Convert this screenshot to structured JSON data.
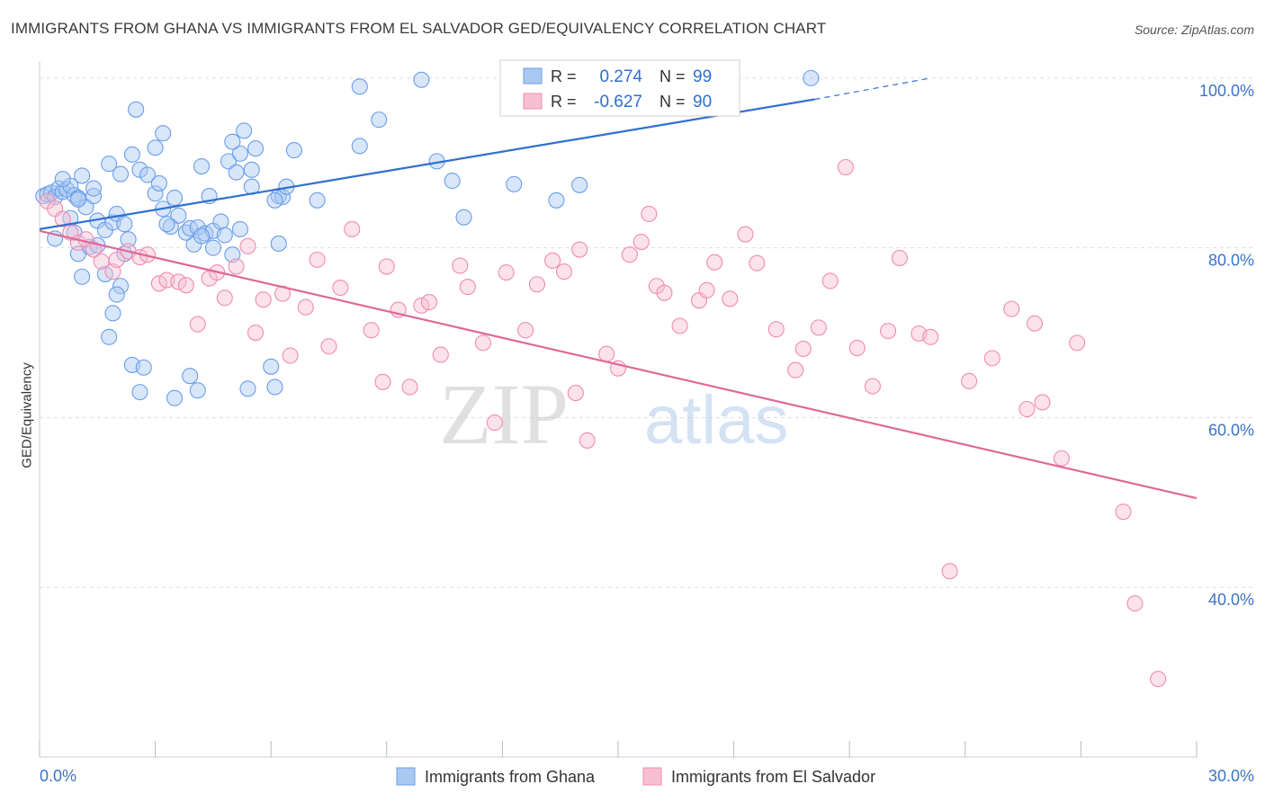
{
  "title": "IMMIGRANTS FROM GHANA VS IMMIGRANTS FROM EL SALVADOR GED/EQUIVALENCY CORRELATION CHART",
  "source": "Source: ZipAtlas.com",
  "watermark": {
    "zip": "ZIP",
    "atlas": "atlas"
  },
  "chart_data": {
    "type": "scatter",
    "ylabel": "GED/Equivalency",
    "xlim": [
      0,
      30
    ],
    "ylim": [
      20,
      102
    ],
    "x_ticks": [
      0,
      3,
      6,
      9,
      12,
      15,
      18,
      21,
      24,
      27,
      30
    ],
    "x_tick_labels": {
      "left": "0.0%",
      "right": "30.0%"
    },
    "y_ticks": [
      {
        "value": 100,
        "label": "100.0%"
      },
      {
        "value": 80,
        "label": "80.0%"
      },
      {
        "value": 60,
        "label": "60.0%"
      },
      {
        "value": 40,
        "label": "40.0%"
      }
    ],
    "grid": true,
    "legend_position": "top-center",
    "series": [
      {
        "name": "Immigrants from Ghana",
        "color": "#6a9ee8",
        "fill": "#a9c8f2",
        "line_color": "#2f6fd0",
        "R": "0.274",
        "N": "99",
        "trend": {
          "x0": 0,
          "y0": 82.2,
          "x1": 20.1,
          "y1": 97.5,
          "dash_to_x": 23.1,
          "dash_to_y": 100
        },
        "points": [
          [
            0.1,
            86.1
          ],
          [
            0.2,
            86.3
          ],
          [
            0.3,
            86.5
          ],
          [
            0.4,
            86.0
          ],
          [
            0.5,
            87.0
          ],
          [
            0.6,
            86.6
          ],
          [
            0.7,
            86.9
          ],
          [
            0.8,
            87.3
          ],
          [
            0.9,
            86.2
          ],
          [
            1.0,
            85.9
          ],
          [
            0.6,
            88.1
          ],
          [
            1.1,
            88.5
          ],
          [
            1.2,
            84.8
          ],
          [
            1.0,
            85.7
          ],
          [
            1.4,
            86.1
          ],
          [
            1.4,
            87.0
          ],
          [
            0.4,
            81.1
          ],
          [
            0.8,
            83.5
          ],
          [
            0.9,
            81.8
          ],
          [
            1.0,
            79.3
          ],
          [
            1.3,
            80.1
          ],
          [
            1.5,
            80.3
          ],
          [
            1.5,
            83.2
          ],
          [
            1.7,
            82.1
          ],
          [
            1.9,
            83.0
          ],
          [
            2.0,
            84.0
          ],
          [
            2.2,
            79.3
          ],
          [
            2.3,
            81.0
          ],
          [
            2.2,
            82.8
          ],
          [
            2.1,
            88.7
          ],
          [
            1.8,
            89.9
          ],
          [
            2.6,
            89.2
          ],
          [
            2.5,
            96.3
          ],
          [
            3.2,
            93.5
          ],
          [
            2.8,
            88.6
          ],
          [
            3.0,
            86.4
          ],
          [
            3.1,
            87.6
          ],
          [
            3.2,
            84.6
          ],
          [
            3.4,
            82.5
          ],
          [
            3.6,
            83.8
          ],
          [
            3.5,
            85.9
          ],
          [
            3.3,
            82.8
          ],
          [
            3.8,
            81.8
          ],
          [
            3.9,
            82.3
          ],
          [
            4.0,
            80.4
          ],
          [
            4.2,
            89.6
          ],
          [
            4.1,
            82.4
          ],
          [
            4.3,
            81.7
          ],
          [
            4.5,
            80.0
          ],
          [
            4.4,
            86.1
          ],
          [
            4.5,
            82.0
          ],
          [
            4.7,
            83.1
          ],
          [
            4.8,
            81.5
          ],
          [
            5.0,
            79.2
          ],
          [
            4.9,
            90.2
          ],
          [
            5.2,
            82.2
          ],
          [
            5.3,
            93.8
          ],
          [
            5.2,
            91.1
          ],
          [
            5.1,
            88.9
          ],
          [
            5.5,
            89.2
          ],
          [
            5.6,
            91.7
          ],
          [
            6.2,
            86.1
          ],
          [
            6.3,
            86.0
          ],
          [
            6.1,
            85.6
          ],
          [
            6.4,
            87.2
          ],
          [
            6.6,
            91.5
          ],
          [
            7.2,
            85.6
          ],
          [
            8.3,
            92.0
          ],
          [
            8.8,
            95.1
          ],
          [
            9.9,
            99.8
          ],
          [
            10.3,
            90.2
          ],
          [
            10.7,
            87.9
          ],
          [
            11.0,
            83.6
          ],
          [
            12.3,
            87.5
          ],
          [
            13.4,
            85.6
          ],
          [
            14.0,
            87.4
          ],
          [
            1.1,
            76.6
          ],
          [
            1.7,
            76.9
          ],
          [
            1.9,
            72.3
          ],
          [
            2.1,
            75.5
          ],
          [
            2.0,
            74.5
          ],
          [
            1.8,
            69.5
          ],
          [
            2.4,
            66.2
          ],
          [
            2.6,
            63.0
          ],
          [
            2.7,
            65.9
          ],
          [
            3.5,
            62.3
          ],
          [
            3.9,
            64.9
          ],
          [
            4.1,
            63.2
          ],
          [
            5.4,
            63.4
          ],
          [
            6.1,
            63.6
          ],
          [
            6.0,
            66.0
          ],
          [
            6.2,
            80.5
          ],
          [
            5.0,
            92.5
          ],
          [
            5.5,
            87.2
          ],
          [
            3.0,
            91.8
          ],
          [
            8.3,
            99.0
          ],
          [
            20.0,
            100.0
          ],
          [
            2.4,
            91.0
          ],
          [
            4.2,
            81.4
          ]
        ]
      },
      {
        "name": "Immigrants from El Salvador",
        "color": "#f08cb0",
        "fill": "#f7bfd2",
        "line_color": "#e06897",
        "R": "-0.627",
        "N": "90",
        "trend": {
          "x0": 0,
          "y0": 82.0,
          "x1": 30,
          "y1": 50.5
        },
        "points": [
          [
            0.2,
            85.5
          ],
          [
            0.4,
            84.6
          ],
          [
            0.6,
            83.4
          ],
          [
            0.8,
            81.8
          ],
          [
            1.0,
            80.6
          ],
          [
            1.2,
            81.0
          ],
          [
            1.4,
            79.8
          ],
          [
            1.6,
            78.4
          ],
          [
            1.9,
            77.2
          ],
          [
            2.0,
            78.6
          ],
          [
            2.3,
            79.6
          ],
          [
            2.6,
            78.9
          ],
          [
            2.8,
            79.2
          ],
          [
            3.1,
            75.8
          ],
          [
            3.3,
            76.2
          ],
          [
            3.6,
            76.0
          ],
          [
            3.8,
            75.6
          ],
          [
            4.1,
            71.0
          ],
          [
            4.4,
            76.4
          ],
          [
            4.6,
            77.1
          ],
          [
            4.8,
            74.1
          ],
          [
            5.1,
            77.8
          ],
          [
            5.4,
            80.2
          ],
          [
            5.6,
            70.0
          ],
          [
            5.8,
            73.9
          ],
          [
            6.3,
            74.6
          ],
          [
            6.5,
            67.3
          ],
          [
            6.9,
            73.0
          ],
          [
            7.2,
            78.6
          ],
          [
            7.5,
            68.4
          ],
          [
            7.8,
            75.3
          ],
          [
            8.1,
            82.2
          ],
          [
            8.6,
            70.3
          ],
          [
            8.9,
            64.2
          ],
          [
            9.0,
            77.8
          ],
          [
            9.3,
            72.7
          ],
          [
            9.6,
            63.6
          ],
          [
            9.9,
            73.2
          ],
          [
            10.1,
            73.6
          ],
          [
            10.4,
            67.4
          ],
          [
            10.9,
            77.9
          ],
          [
            11.1,
            75.4
          ],
          [
            11.5,
            68.8
          ],
          [
            11.8,
            59.4
          ],
          [
            12.1,
            77.1
          ],
          [
            12.6,
            70.3
          ],
          [
            12.9,
            75.7
          ],
          [
            13.3,
            78.5
          ],
          [
            13.6,
            77.2
          ],
          [
            13.9,
            62.9
          ],
          [
            14.0,
            79.8
          ],
          [
            14.2,
            57.3
          ],
          [
            14.7,
            67.5
          ],
          [
            15.0,
            65.8
          ],
          [
            15.3,
            79.2
          ],
          [
            15.6,
            80.7
          ],
          [
            15.8,
            84.0
          ],
          [
            16.0,
            75.5
          ],
          [
            16.2,
            74.7
          ],
          [
            16.6,
            70.8
          ],
          [
            17.1,
            73.8
          ],
          [
            17.3,
            75.0
          ],
          [
            17.5,
            78.3
          ],
          [
            17.9,
            74.0
          ],
          [
            18.3,
            81.6
          ],
          [
            18.6,
            78.2
          ],
          [
            19.1,
            70.4
          ],
          [
            19.6,
            65.6
          ],
          [
            19.8,
            68.1
          ],
          [
            20.2,
            70.6
          ],
          [
            20.5,
            76.1
          ],
          [
            20.9,
            89.5
          ],
          [
            21.2,
            68.2
          ],
          [
            21.6,
            63.7
          ],
          [
            22.0,
            70.2
          ],
          [
            22.3,
            78.8
          ],
          [
            22.8,
            69.9
          ],
          [
            23.1,
            69.5
          ],
          [
            23.6,
            41.9
          ],
          [
            24.1,
            64.3
          ],
          [
            24.7,
            67.0
          ],
          [
            25.2,
            72.8
          ],
          [
            25.6,
            61.0
          ],
          [
            25.8,
            71.1
          ],
          [
            26.0,
            61.8
          ],
          [
            26.5,
            55.2
          ],
          [
            26.9,
            68.8
          ],
          [
            28.1,
            48.9
          ],
          [
            28.4,
            38.1
          ],
          [
            29.0,
            29.2
          ]
        ]
      }
    ]
  },
  "legend": {
    "rows": [
      {
        "r_label": "R =",
        "r_value": "0.274",
        "n_label": "N =",
        "n_value": "99"
      },
      {
        "r_label": "R =",
        "r_value": "-0.627",
        "n_label": "N =",
        "n_value": "90"
      }
    ],
    "bottom": [
      "Immigrants from Ghana",
      "Immigrants from El Salvador"
    ]
  }
}
